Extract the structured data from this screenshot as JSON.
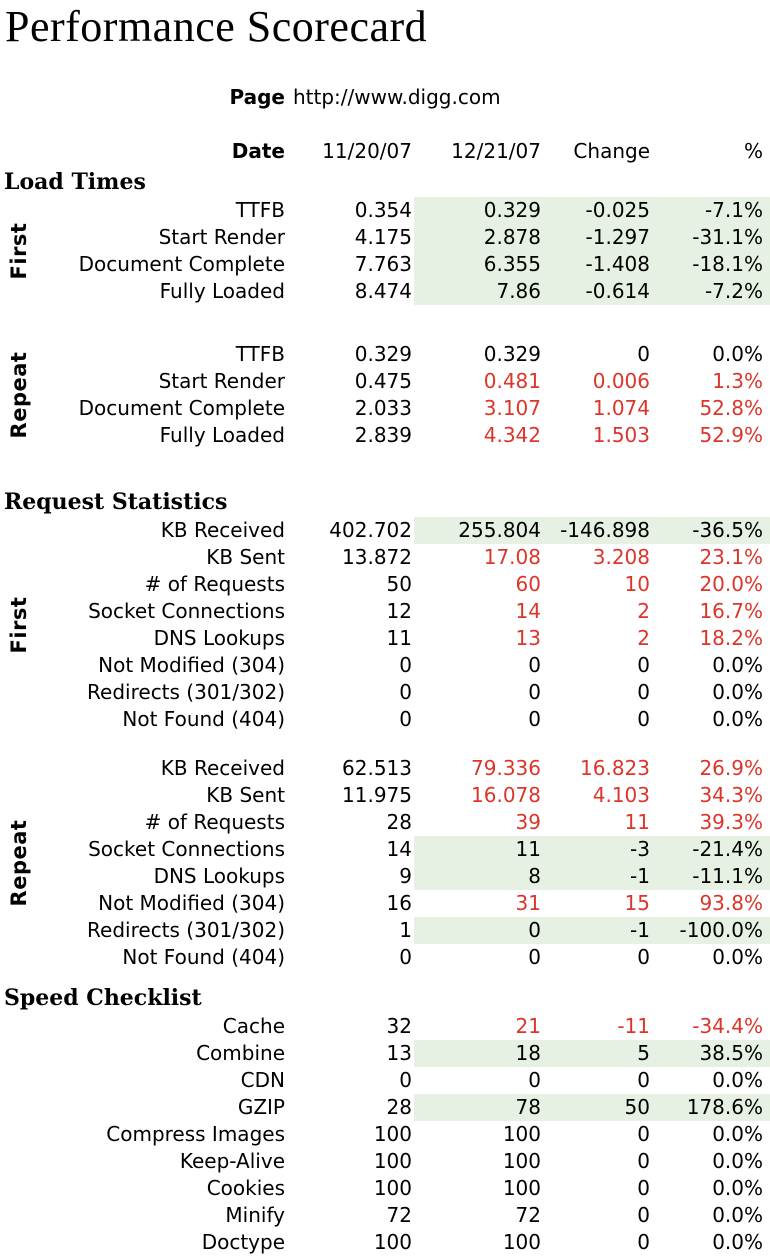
{
  "title": "Performance Scorecard",
  "page": {
    "label": "Page",
    "url": "http://www.digg.com"
  },
  "header": {
    "label": "Date",
    "columns": [
      "11/20/07",
      "12/21/07",
      "Change",
      "%"
    ]
  },
  "colors": {
    "improvement_bg": "#e7f1e3",
    "regression_text": "#dc352a",
    "default_text": "#000000",
    "background": "#ffffff"
  },
  "sections": [
    {
      "title": "Load Times",
      "groups": [
        {
          "label": "First",
          "rows": [
            {
              "metric": "TTFB",
              "values": [
                "0.354",
                "0.329",
                "-0.025",
                "-7.1%"
              ],
              "status": "good"
            },
            {
              "metric": "Start Render",
              "values": [
                "4.175",
                "2.878",
                "-1.297",
                "-31.1%"
              ],
              "status": "good"
            },
            {
              "metric": "Document Complete",
              "values": [
                "7.763",
                "6.355",
                "-1.408",
                "-18.1%"
              ],
              "status": "good"
            },
            {
              "metric": "Fully Loaded",
              "values": [
                "8.474",
                "7.86",
                "-0.614",
                "-7.2%"
              ],
              "status": "good"
            }
          ]
        },
        {
          "label": "Repeat",
          "rows": [
            {
              "metric": "TTFB",
              "values": [
                "0.329",
                "0.329",
                "0",
                "0.0%"
              ],
              "status": "neutral"
            },
            {
              "metric": "Start Render",
              "values": [
                "0.475",
                "0.481",
                "0.006",
                "1.3%"
              ],
              "status": "bad"
            },
            {
              "metric": "Document Complete",
              "values": [
                "2.033",
                "3.107",
                "1.074",
                "52.8%"
              ],
              "status": "bad"
            },
            {
              "metric": "Fully Loaded",
              "values": [
                "2.839",
                "4.342",
                "1.503",
                "52.9%"
              ],
              "status": "bad"
            }
          ]
        }
      ]
    },
    {
      "title": "Request Statistics",
      "groups": [
        {
          "label": "First",
          "rows": [
            {
              "metric": "KB Received",
              "values": [
                "402.702",
                "255.804",
                "-146.898",
                "-36.5%"
              ],
              "status": "good"
            },
            {
              "metric": "KB Sent",
              "values": [
                "13.872",
                "17.08",
                "3.208",
                "23.1%"
              ],
              "status": "bad"
            },
            {
              "metric": "# of Requests",
              "values": [
                "50",
                "60",
                "10",
                "20.0%"
              ],
              "status": "bad"
            },
            {
              "metric": "Socket Connections",
              "values": [
                "12",
                "14",
                "2",
                "16.7%"
              ],
              "status": "bad"
            },
            {
              "metric": "DNS Lookups",
              "values": [
                "11",
                "13",
                "2",
                "18.2%"
              ],
              "status": "bad"
            },
            {
              "metric": "Not Modified (304)",
              "values": [
                "0",
                "0",
                "0",
                "0.0%"
              ],
              "status": "neutral"
            },
            {
              "metric": "Redirects (301/302)",
              "values": [
                "0",
                "0",
                "0",
                "0.0%"
              ],
              "status": "neutral"
            },
            {
              "metric": "Not Found (404)",
              "values": [
                "0",
                "0",
                "0",
                "0.0%"
              ],
              "status": "neutral"
            }
          ]
        },
        {
          "label": "Repeat",
          "rows": [
            {
              "metric": "KB Received",
              "values": [
                "62.513",
                "79.336",
                "16.823",
                "26.9%"
              ],
              "status": "bad"
            },
            {
              "metric": "KB Sent",
              "values": [
                "11.975",
                "16.078",
                "4.103",
                "34.3%"
              ],
              "status": "bad"
            },
            {
              "metric": "# of Requests",
              "values": [
                "28",
                "39",
                "11",
                "39.3%"
              ],
              "status": "bad"
            },
            {
              "metric": "Socket Connections",
              "values": [
                "14",
                "11",
                "-3",
                "-21.4%"
              ],
              "status": "good"
            },
            {
              "metric": "DNS Lookups",
              "values": [
                "9",
                "8",
                "-1",
                "-11.1%"
              ],
              "status": "good"
            },
            {
              "metric": "Not Modified (304)",
              "values": [
                "16",
                "31",
                "15",
                "93.8%"
              ],
              "status": "bad"
            },
            {
              "metric": "Redirects (301/302)",
              "values": [
                "1",
                "0",
                "-1",
                "-100.0%"
              ],
              "status": "good"
            },
            {
              "metric": "Not Found (404)",
              "values": [
                "0",
                "0",
                "0",
                "0.0%"
              ],
              "status": "neutral"
            }
          ]
        }
      ]
    },
    {
      "title": "Speed Checklist",
      "groups": [
        {
          "label": "",
          "rows": [
            {
              "metric": "Cache",
              "values": [
                "32",
                "21",
                "-11",
                "-34.4%"
              ],
              "status": "bad"
            },
            {
              "metric": "Combine",
              "values": [
                "13",
                "18",
                "5",
                "38.5%"
              ],
              "status": "good"
            },
            {
              "metric": "CDN",
              "values": [
                "0",
                "0",
                "0",
                "0.0%"
              ],
              "status": "neutral"
            },
            {
              "metric": "GZIP",
              "values": [
                "28",
                "78",
                "50",
                "178.6%"
              ],
              "status": "good"
            },
            {
              "metric": "Compress Images",
              "values": [
                "100",
                "100",
                "0",
                "0.0%"
              ],
              "status": "neutral"
            },
            {
              "metric": "Keep-Alive",
              "values": [
                "100",
                "100",
                "0",
                "0.0%"
              ],
              "status": "neutral"
            },
            {
              "metric": "Cookies",
              "values": [
                "100",
                "100",
                "0",
                "0.0%"
              ],
              "status": "neutral"
            },
            {
              "metric": "Minify",
              "values": [
                "72",
                "72",
                "0",
                "0.0%"
              ],
              "status": "neutral"
            },
            {
              "metric": "Doctype",
              "values": [
                "100",
                "100",
                "0",
                "0.0%"
              ],
              "status": "neutral"
            }
          ]
        }
      ]
    }
  ]
}
